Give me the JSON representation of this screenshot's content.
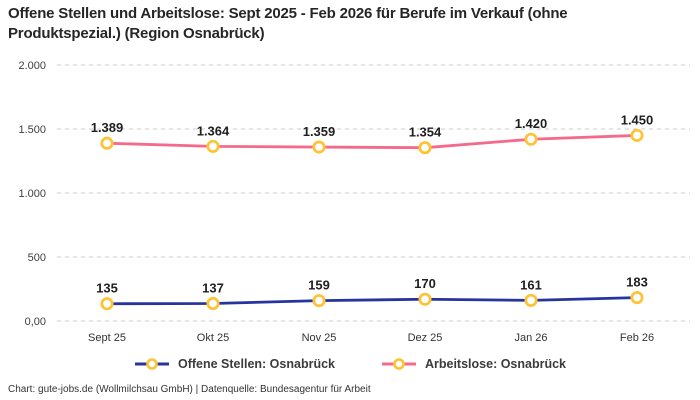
{
  "title": "Offene Stellen und Arbeitslose: Sept 2025 - Feb 2026 für Berufe im Verkauf (ohne Produktspezial.) (Region Osnabrück)",
  "footer": "Chart: gute-jobs.de (Wollmilchsau GmbH) | Datenquelle: Bundesagentur für Arbeit",
  "legend": {
    "items": [
      {
        "label": "Offene Stellen: Osnabrück",
        "color": "#26349F"
      },
      {
        "label": "Arbeitslose: Osnabrück",
        "color": "#F5698A"
      }
    ]
  },
  "chart_data": {
    "type": "line",
    "title": "Offene Stellen und Arbeitslose: Sept 2025 - Feb 2026 für Berufe im Verkauf (ohne Produktspezial.) (Region Osnabrück)",
    "categories": [
      "Sept 25",
      "Okt 25",
      "Nov 25",
      "Dez 25",
      "Jan 26",
      "Feb 26"
    ],
    "series": [
      {
        "name": "Offene Stellen: Osnabrück",
        "color": "#26349F",
        "values": [
          135,
          137,
          159,
          170,
          161,
          183
        ],
        "labels": [
          "135",
          "137",
          "159",
          "170",
          "161",
          "183"
        ]
      },
      {
        "name": "Arbeitslose: Osnabrück",
        "color": "#F5698A",
        "values": [
          1389,
          1364,
          1359,
          1354,
          1420,
          1450
        ],
        "labels": [
          "1.389",
          "1.364",
          "1.359",
          "1.354",
          "1.420",
          "1.450"
        ]
      }
    ],
    "ylim": [
      0,
      2000
    ],
    "yticks": {
      "values": [
        0,
        500,
        1000,
        1500,
        2000
      ],
      "labels": [
        "0,00",
        "500",
        "1.000",
        "1.500",
        "2.000"
      ]
    },
    "grid": "dashed-horizontal",
    "grid_color": "#CBCBCB",
    "marker_color": "#FFC233",
    "data_label_color": "#1F1F1F",
    "axis_label_color": "#3D3D3D",
    "legend_position": "bottom"
  }
}
